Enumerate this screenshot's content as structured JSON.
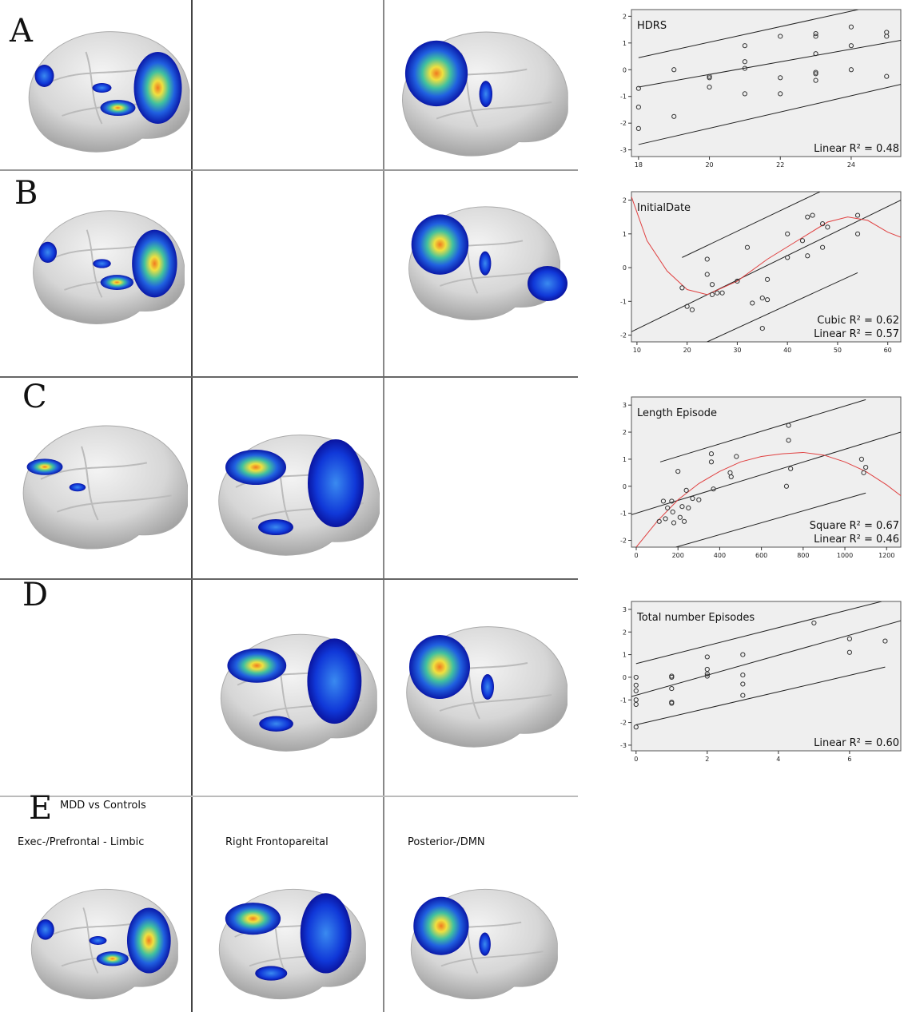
{
  "panels": {
    "letters": [
      "A",
      "B",
      "C",
      "D",
      "E"
    ],
    "e_title": "MDD vs Controls",
    "columns": [
      "Exec-/Prefrontal - Limbic",
      "Right Frontopareital",
      "Posterior-/DMN"
    ]
  },
  "chart_data": [
    {
      "type": "scatter",
      "title": "HDRS",
      "annotations": [
        "Linear R² = 0.48"
      ],
      "xlim": [
        17.8,
        25.4
      ],
      "xticks": [
        18,
        20,
        22,
        24
      ],
      "ylim": [
        -3.25,
        2.25
      ],
      "yticks": [
        -3,
        -2,
        -1,
        0,
        1,
        2
      ],
      "color": "#333333",
      "x": [
        18,
        18,
        18,
        19,
        19,
        20,
        20,
        20,
        21,
        21,
        21,
        21,
        22,
        22,
        22,
        23,
        23,
        23,
        23,
        23,
        23,
        24,
        24,
        24,
        25,
        25,
        25
      ],
      "values": [
        -0.7,
        -1.4,
        -2.2,
        0,
        -1.75,
        -0.25,
        -0.3,
        -0.65,
        0.9,
        0.3,
        0.05,
        -0.9,
        1.25,
        -0.3,
        -0.9,
        1.35,
        1.25,
        0.6,
        -0.1,
        -0.15,
        -0.4,
        1.6,
        0.9,
        0,
        1.4,
        1.25,
        -0.25
      ],
      "fits": [
        {
          "color": "#222222",
          "x": [
            18,
            25.4
          ],
          "values": [
            -0.65,
            1.1
          ]
        },
        {
          "color": "#222222",
          "x": [
            18,
            24.2
          ],
          "values": [
            0.45,
            2.25
          ]
        },
        {
          "color": "#222222",
          "x": [
            18,
            25.4
          ],
          "values": [
            -2.8,
            -0.55
          ]
        }
      ]
    },
    {
      "type": "scatter",
      "title": "InitialDate",
      "annotations": [
        "Cubic  R² = 0.62",
        "Linear R² = 0.57"
      ],
      "xlim": [
        8.9,
        62.6
      ],
      "xticks": [
        10,
        20,
        30,
        40,
        50,
        60
      ],
      "ylim": [
        -2.2,
        2.25
      ],
      "yticks": [
        -2,
        -1,
        0,
        1,
        2
      ],
      "color": "#333333",
      "x": [
        19,
        20,
        21,
        24,
        24,
        25,
        25,
        26,
        27,
        30,
        32,
        33,
        35,
        35,
        36,
        36,
        40,
        40,
        43,
        44,
        44,
        45,
        47,
        47,
        48,
        54,
        54
      ],
      "values": [
        -0.6,
        -1.15,
        -1.25,
        0.25,
        -0.2,
        -0.5,
        -0.8,
        -0.75,
        -0.75,
        -0.4,
        0.6,
        -1.05,
        -0.9,
        -1.8,
        -0.35,
        -0.95,
        1.0,
        0.3,
        0.8,
        0.35,
        1.5,
        1.55,
        1.3,
        0.6,
        1.2,
        1.55,
        1.0
      ],
      "fits": [
        {
          "color": "#222222",
          "x": [
            8.9,
            62.6
          ],
          "values": [
            -1.9,
            2.0
          ]
        },
        {
          "color": "#222222",
          "x": [
            19,
            46.5
          ],
          "values": [
            0.3,
            2.25
          ]
        },
        {
          "color": "#222222",
          "x": [
            24,
            54
          ],
          "values": [
            -2.2,
            -0.15
          ]
        },
        {
          "color": "#e04040",
          "x": [
            8.9,
            12,
            16,
            20,
            24,
            30,
            36,
            42,
            48,
            52,
            56,
            60,
            62.6
          ],
          "values": [
            2.1,
            0.8,
            -0.1,
            -0.65,
            -0.8,
            -0.4,
            0.25,
            0.8,
            1.35,
            1.5,
            1.4,
            1.05,
            0.9
          ]
        }
      ]
    },
    {
      "type": "scatter",
      "title": "Length Episode",
      "annotations": [
        "Square  R² = 0.67",
        "Linear    R² = 0.46"
      ],
      "xlim": [
        -23,
        1268
      ],
      "xticks": [
        0,
        200,
        400,
        600,
        800,
        1000,
        1200
      ],
      "ylim": [
        -2.25,
        3.3
      ],
      "yticks": [
        -2,
        -1,
        0,
        1,
        2,
        3
      ],
      "color": "#333333",
      "x": [
        110,
        130,
        140,
        150,
        170,
        175,
        180,
        200,
        210,
        220,
        230,
        240,
        250,
        270,
        300,
        360,
        360,
        370,
        450,
        455,
        480,
        720,
        730,
        730,
        740,
        1080,
        1090,
        1100
      ],
      "values": [
        -1.3,
        -0.55,
        -1.2,
        -0.8,
        -0.55,
        -0.95,
        -1.35,
        0.55,
        -1.15,
        -0.75,
        -1.3,
        -0.15,
        -0.8,
        -0.45,
        -0.5,
        1.2,
        0.9,
        -0.1,
        0.5,
        0.35,
        1.1,
        0,
        2.25,
        1.7,
        0.65,
        1.0,
        0.5,
        0.7
      ],
      "fits": [
        {
          "color": "#222222",
          "x": [
            -23,
            1268
          ],
          "values": [
            -1.05,
            2.0
          ]
        },
        {
          "color": "#222222",
          "x": [
            115,
            1100
          ],
          "values": [
            0.9,
            3.2
          ]
        },
        {
          "color": "#222222",
          "x": [
            190,
            1100
          ],
          "values": [
            -2.25,
            -0.25
          ]
        },
        {
          "color": "#e04040",
          "x": [
            0,
            100,
            200,
            300,
            400,
            500,
            600,
            700,
            800,
            900,
            1000,
            1100,
            1200,
            1268
          ],
          "values": [
            -2.25,
            -1.3,
            -0.5,
            0.1,
            0.55,
            0.9,
            1.1,
            1.2,
            1.25,
            1.15,
            0.9,
            0.55,
            0.05,
            -0.35
          ]
        }
      ]
    },
    {
      "type": "scatter",
      "title": "Total number Episodes",
      "annotations": [
        "Linear R² = 0.60"
      ],
      "xlim": [
        -0.13,
        7.44
      ],
      "xticks": [
        0,
        2,
        4,
        6
      ],
      "ylim": [
        -3.25,
        3.35
      ],
      "yticks": [
        -3,
        -2,
        -1,
        0,
        1,
        2,
        3
      ],
      "color": "#333333",
      "x": [
        0,
        0,
        0,
        0,
        0,
        0,
        1,
        1,
        1,
        1,
        1,
        2,
        2,
        2,
        2,
        3,
        3,
        3,
        3,
        5,
        6,
        6,
        7
      ],
      "values": [
        0,
        -0.35,
        -0.6,
        -1.0,
        -1.2,
        -2.2,
        0.05,
        0,
        -0.5,
        -1.1,
        -1.15,
        0.9,
        0.35,
        0.15,
        0.05,
        1.0,
        0.1,
        -0.3,
        -0.8,
        2.4,
        1.7,
        1.1,
        1.6
      ],
      "fits": [
        {
          "color": "#222222",
          "x": [
            -0.13,
            7.44
          ],
          "values": [
            -0.85,
            2.5
          ]
        },
        {
          "color": "#222222",
          "x": [
            0,
            6.9
          ],
          "values": [
            0.6,
            3.35
          ]
        },
        {
          "color": "#222222",
          "x": [
            0,
            7
          ],
          "values": [
            -2.1,
            0.45
          ]
        }
      ]
    }
  ]
}
